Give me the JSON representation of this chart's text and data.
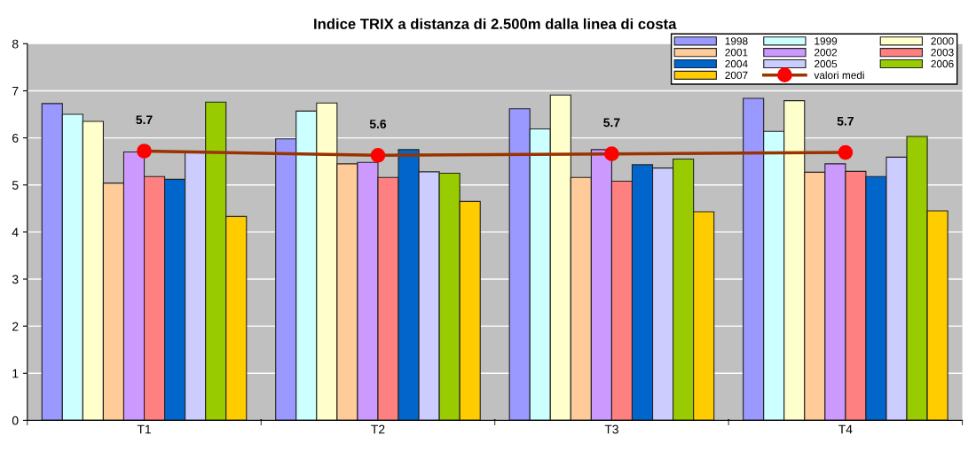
{
  "chart_data": {
    "type": "bar",
    "title": "Indice TRIX a distanza di 2.500m dalla linea di costa",
    "categories": [
      "T1",
      "T2",
      "T3",
      "T4"
    ],
    "ylim": [
      0,
      8
    ],
    "yticks": [
      0,
      1,
      2,
      3,
      4,
      5,
      6,
      7,
      8
    ],
    "grid": "y",
    "legend": "top right",
    "series": [
      {
        "name": "1998",
        "color": "#9999ff",
        "values": [
          6.73,
          5.98,
          6.62,
          6.84
        ]
      },
      {
        "name": "1999",
        "color": "#ccffff",
        "values": [
          6.5,
          6.57,
          6.19,
          6.14
        ]
      },
      {
        "name": "2000",
        "color": "#ffffcc",
        "values": [
          6.35,
          6.74,
          6.91,
          6.79
        ]
      },
      {
        "name": "2001",
        "color": "#ffcc99",
        "values": [
          5.04,
          5.45,
          5.16,
          5.27
        ]
      },
      {
        "name": "2002",
        "color": "#cc99ff",
        "values": [
          5.7,
          5.48,
          5.75,
          5.45
        ]
      },
      {
        "name": "2003",
        "color": "#ff8080",
        "values": [
          5.18,
          5.16,
          5.08,
          5.29
        ]
      },
      {
        "name": "2004",
        "color": "#0066cc",
        "values": [
          5.12,
          5.75,
          5.43,
          5.18
        ]
      },
      {
        "name": "2005",
        "color": "#ccccff",
        "values": [
          5.7,
          5.28,
          5.36,
          5.59
        ]
      },
      {
        "name": "2006",
        "color": "#99cc00",
        "values": [
          6.76,
          5.25,
          5.55,
          6.03
        ]
      },
      {
        "name": "2007",
        "color": "#ffcc00",
        "values": [
          4.33,
          4.65,
          4.43,
          4.45
        ]
      },
      {
        "name": "valori medi",
        "type": "line",
        "color": "#993300",
        "marker": "circle",
        "values": [
          5.72,
          5.63,
          5.66,
          5.69
        ],
        "value_labels": [
          "5.7",
          "5.6",
          "5.7",
          "5.7"
        ]
      }
    ]
  }
}
